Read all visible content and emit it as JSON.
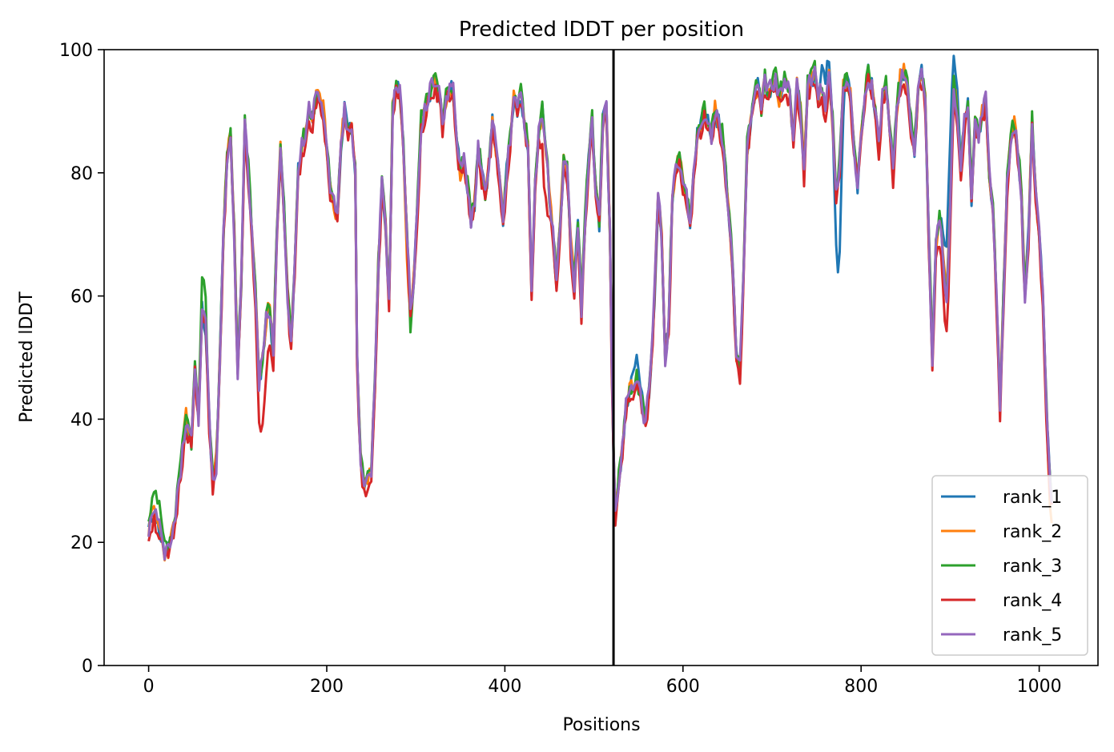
{
  "chart_data": {
    "type": "line",
    "title": "Predicted lDDT per position",
    "xlabel": "Positions",
    "ylabel": "Predicted lDDT",
    "xlim": [
      -50,
      1066
    ],
    "ylim": [
      0,
      100
    ],
    "xticks": [
      0,
      200,
      400,
      600,
      800,
      1000
    ],
    "yticks": [
      0,
      20,
      40,
      60,
      80,
      100
    ],
    "legend_position": "lower-right",
    "vline": 522,
    "base_profile": [
      [
        0,
        22
      ],
      [
        6,
        25
      ],
      [
        12,
        22
      ],
      [
        18,
        18
      ],
      [
        24,
        19
      ],
      [
        30,
        24
      ],
      [
        36,
        32
      ],
      [
        42,
        40
      ],
      [
        48,
        36
      ],
      [
        52,
        48
      ],
      [
        56,
        40
      ],
      [
        60,
        58
      ],
      [
        64,
        55
      ],
      [
        68,
        40
      ],
      [
        72,
        30
      ],
      [
        76,
        33
      ],
      [
        80,
        50
      ],
      [
        84,
        70
      ],
      [
        88,
        82
      ],
      [
        92,
        86
      ],
      [
        96,
        70
      ],
      [
        100,
        48
      ],
      [
        104,
        62
      ],
      [
        108,
        88
      ],
      [
        112,
        80
      ],
      [
        116,
        70
      ],
      [
        120,
        60
      ],
      [
        124,
        46
      ],
      [
        128,
        50
      ],
      [
        132,
        56
      ],
      [
        136,
        58
      ],
      [
        140,
        50
      ],
      [
        144,
        70
      ],
      [
        148,
        84
      ],
      [
        152,
        74
      ],
      [
        156,
        60
      ],
      [
        160,
        52
      ],
      [
        164,
        65
      ],
      [
        168,
        80
      ],
      [
        172,
        84
      ],
      [
        176,
        86
      ],
      [
        180,
        90
      ],
      [
        184,
        88
      ],
      [
        188,
        93
      ],
      [
        192,
        91
      ],
      [
        196,
        90
      ],
      [
        200,
        84
      ],
      [
        204,
        78
      ],
      [
        208,
        75
      ],
      [
        212,
        72
      ],
      [
        216,
        85
      ],
      [
        220,
        90
      ],
      [
        224,
        86
      ],
      [
        228,
        88
      ],
      [
        232,
        80
      ],
      [
        234,
        50
      ],
      [
        238,
        33
      ],
      [
        242,
        29
      ],
      [
        246,
        30
      ],
      [
        250,
        32
      ],
      [
        254,
        45
      ],
      [
        258,
        65
      ],
      [
        262,
        78
      ],
      [
        266,
        72
      ],
      [
        270,
        58
      ],
      [
        274,
        90
      ],
      [
        278,
        94
      ],
      [
        282,
        93
      ],
      [
        286,
        85
      ],
      [
        290,
        70
      ],
      [
        294,
        58
      ],
      [
        298,
        63
      ],
      [
        302,
        75
      ],
      [
        306,
        88
      ],
      [
        310,
        90
      ],
      [
        314,
        92
      ],
      [
        318,
        94
      ],
      [
        322,
        95
      ],
      [
        326,
        93
      ],
      [
        330,
        88
      ],
      [
        334,
        92
      ],
      [
        338,
        94
      ],
      [
        342,
        93
      ],
      [
        346,
        85
      ],
      [
        350,
        80
      ],
      [
        354,
        82
      ],
      [
        358,
        78
      ],
      [
        362,
        72
      ],
      [
        366,
        75
      ],
      [
        370,
        84
      ],
      [
        374,
        80
      ],
      [
        378,
        76
      ],
      [
        382,
        82
      ],
      [
        386,
        88
      ],
      [
        390,
        84
      ],
      [
        394,
        78
      ],
      [
        398,
        72
      ],
      [
        402,
        80
      ],
      [
        406,
        86
      ],
      [
        410,
        92
      ],
      [
        414,
        90
      ],
      [
        418,
        93
      ],
      [
        422,
        88
      ],
      [
        426,
        84
      ],
      [
        430,
        60
      ],
      [
        434,
        78
      ],
      [
        438,
        86
      ],
      [
        442,
        90
      ],
      [
        446,
        84
      ],
      [
        450,
        76
      ],
      [
        454,
        70
      ],
      [
        458,
        62
      ],
      [
        462,
        72
      ],
      [
        466,
        82
      ],
      [
        470,
        80
      ],
      [
        474,
        68
      ],
      [
        478,
        62
      ],
      [
        482,
        72
      ],
      [
        486,
        58
      ],
      [
        490,
        72
      ],
      [
        494,
        82
      ],
      [
        498,
        88
      ],
      [
        502,
        78
      ],
      [
        506,
        72
      ],
      [
        510,
        88
      ],
      [
        514,
        90
      ],
      [
        518,
        70
      ],
      [
        521,
        40
      ],
      [
        524,
        24
      ],
      [
        528,
        30
      ],
      [
        532,
        35
      ],
      [
        536,
        42
      ],
      [
        540,
        45
      ],
      [
        544,
        44
      ],
      [
        548,
        46
      ],
      [
        552,
        44
      ],
      [
        556,
        40
      ],
      [
        560,
        42
      ],
      [
        564,
        48
      ],
      [
        568,
        60
      ],
      [
        572,
        76
      ],
      [
        576,
        70
      ],
      [
        580,
        50
      ],
      [
        584,
        55
      ],
      [
        588,
        76
      ],
      [
        592,
        80
      ],
      [
        596,
        82
      ],
      [
        600,
        78
      ],
      [
        604,
        76
      ],
      [
        608,
        72
      ],
      [
        612,
        80
      ],
      [
        616,
        86
      ],
      [
        620,
        88
      ],
      [
        624,
        90
      ],
      [
        628,
        88
      ],
      [
        632,
        86
      ],
      [
        636,
        90
      ],
      [
        640,
        88
      ],
      [
        644,
        86
      ],
      [
        648,
        80
      ],
      [
        652,
        72
      ],
      [
        656,
        64
      ],
      [
        660,
        50
      ],
      [
        664,
        48
      ],
      [
        668,
        62
      ],
      [
        672,
        84
      ],
      [
        676,
        88
      ],
      [
        680,
        92
      ],
      [
        684,
        94
      ],
      [
        688,
        90
      ],
      [
        692,
        95
      ],
      [
        696,
        93
      ],
      [
        700,
        94
      ],
      [
        704,
        95
      ],
      [
        708,
        92
      ],
      [
        712,
        94
      ],
      [
        716,
        95
      ],
      [
        720,
        92
      ],
      [
        724,
        85
      ],
      [
        728,
        94
      ],
      [
        732,
        90
      ],
      [
        736,
        80
      ],
      [
        740,
        94
      ],
      [
        744,
        95
      ],
      [
        748,
        96
      ],
      [
        752,
        92
      ],
      [
        756,
        94
      ],
      [
        760,
        90
      ],
      [
        764,
        95
      ],
      [
        768,
        88
      ],
      [
        772,
        76
      ],
      [
        776,
        82
      ],
      [
        780,
        94
      ],
      [
        784,
        95
      ],
      [
        788,
        92
      ],
      [
        792,
        84
      ],
      [
        796,
        78
      ],
      [
        800,
        85
      ],
      [
        804,
        92
      ],
      [
        808,
        96
      ],
      [
        812,
        94
      ],
      [
        816,
        90
      ],
      [
        820,
        84
      ],
      [
        824,
        92
      ],
      [
        828,
        94
      ],
      [
        832,
        88
      ],
      [
        836,
        80
      ],
      [
        840,
        90
      ],
      [
        844,
        95
      ],
      [
        848,
        96
      ],
      [
        852,
        94
      ],
      [
        856,
        88
      ],
      [
        860,
        84
      ],
      [
        864,
        94
      ],
      [
        868,
        96
      ],
      [
        872,
        92
      ],
      [
        876,
        70
      ],
      [
        880,
        50
      ],
      [
        884,
        68
      ],
      [
        888,
        72
      ],
      [
        892,
        66
      ],
      [
        896,
        60
      ],
      [
        900,
        74
      ],
      [
        904,
        94
      ],
      [
        908,
        90
      ],
      [
        912,
        80
      ],
      [
        916,
        88
      ],
      [
        920,
        92
      ],
      [
        924,
        76
      ],
      [
        928,
        88
      ],
      [
        932,
        86
      ],
      [
        936,
        90
      ],
      [
        940,
        92
      ],
      [
        944,
        80
      ],
      [
        948,
        74
      ],
      [
        952,
        60
      ],
      [
        956,
        42
      ],
      [
        960,
        60
      ],
      [
        964,
        78
      ],
      [
        968,
        86
      ],
      [
        972,
        88
      ],
      [
        976,
        84
      ],
      [
        980,
        76
      ],
      [
        984,
        60
      ],
      [
        988,
        70
      ],
      [
        992,
        88
      ],
      [
        996,
        76
      ],
      [
        1000,
        70
      ],
      [
        1004,
        60
      ],
      [
        1008,
        42
      ],
      [
        1012,
        30
      ],
      [
        1015,
        24
      ]
    ],
    "series": [
      {
        "name": "rank_1",
        "color": "#1f77b4",
        "offset": 0.0,
        "seed": 11,
        "bumps": [
          [
            775,
            -16,
            4
          ],
          [
            900,
            10,
            8
          ],
          [
            548,
            4,
            6
          ],
          [
            760,
            6,
            4
          ]
        ]
      },
      {
        "name": "rank_2",
        "color": "#ff7f0e",
        "offset": 0.3,
        "seed": 23,
        "bumps": [
          [
            290,
            -4,
            4
          ],
          [
            1012,
            -3,
            4
          ]
        ]
      },
      {
        "name": "rank_3",
        "color": "#2ca02c",
        "offset": 0.6,
        "seed": 37,
        "bumps": [
          [
            62,
            4,
            4
          ],
          [
            10,
            3,
            6
          ],
          [
            294,
            -3,
            3
          ]
        ]
      },
      {
        "name": "rank_4",
        "color": "#d62728",
        "offset": -1.0,
        "seed": 51,
        "bumps": [
          [
            128,
            -6,
            6
          ],
          [
            130,
            -4,
            10
          ],
          [
            445,
            -8,
            4
          ],
          [
            895,
            -6,
            6
          ]
        ]
      },
      {
        "name": "rank_5",
        "color": "#9467bd",
        "offset": 0.1,
        "seed": 73,
        "bumps": [
          [
            75,
            -3,
            3
          ]
        ]
      }
    ]
  }
}
